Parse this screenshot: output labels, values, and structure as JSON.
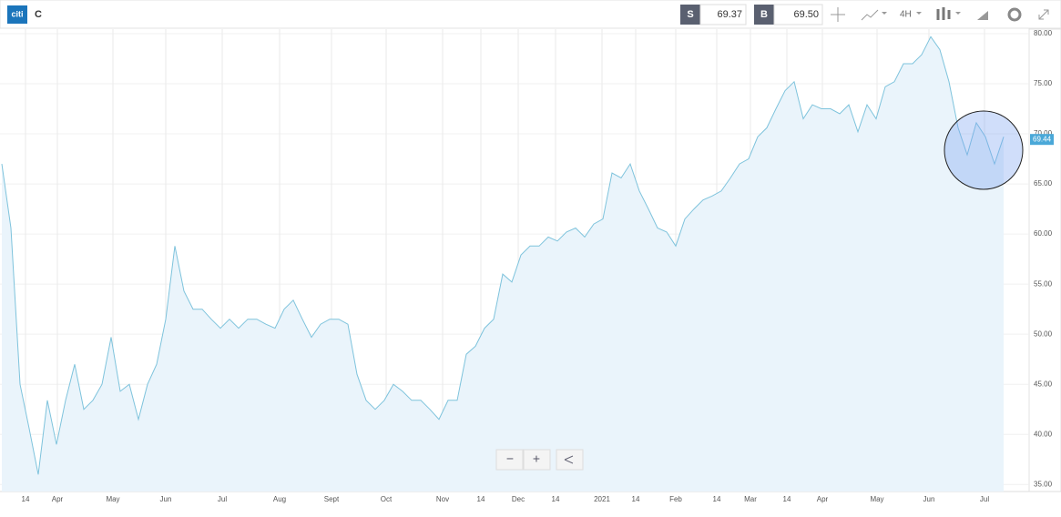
{
  "header": {
    "logo": "citi",
    "symbol": "C",
    "sell_label": "S",
    "sell": "69.37",
    "buy_label": "B",
    "buy": "69.50",
    "timeframe": "4H"
  },
  "zoom": {
    "minus": "−",
    "plus": "+"
  },
  "chart_data": {
    "type": "line",
    "color": "#7ec3dc",
    "fill": "#eaf4fb",
    "grid": true,
    "last_price": 69.44,
    "series": [
      {
        "name": "C",
        "color": "#7ec3dc",
        "values": [
          67,
          60.6,
          45,
          40.6,
          36,
          43.4,
          39,
          43.4,
          47,
          42.5,
          43.4,
          45,
          49.7,
          44.3,
          45,
          41.5,
          45,
          47,
          51.5,
          58.8,
          54.3,
          52.5,
          52.5,
          51.5,
          50.6,
          51.5,
          50.6,
          51.5,
          51.5,
          51,
          50.6,
          52.5,
          53.4,
          51.5,
          49.7,
          51,
          51.5,
          51.5,
          51,
          46,
          43.4,
          42.5,
          43.4,
          45,
          44.3,
          43.4,
          43.4,
          42.5,
          41.5,
          43.4,
          43.4,
          48,
          48.8,
          50.6,
          51.5,
          56,
          55.2,
          57.9,
          58.8,
          58.8,
          59.7,
          59.3,
          60.2,
          60.6,
          59.7,
          61,
          61.5,
          66.1,
          65.6,
          67,
          64.3,
          62.5,
          60.6,
          60.2,
          58.8,
          61.5,
          62.5,
          63.4,
          63.8,
          64.3,
          65.6,
          67,
          67.5,
          69.7,
          70.6,
          72.5,
          74.3,
          75.2,
          71.5,
          72.9,
          72.5,
          72.5,
          72,
          72.9,
          70.2,
          72.9,
          71.5,
          74.7,
          75.2,
          77,
          77,
          77.9,
          79.7,
          78.4,
          75.2,
          70.6,
          67.9,
          71.1,
          69.7,
          67,
          69.7
        ]
      }
    ],
    "xlim": [
      -0.2,
      112.8
    ],
    "xticks": [
      {
        "value": 2.6,
        "label": "14"
      },
      {
        "value": 6.1,
        "label": "Apr"
      },
      {
        "value": 12.2,
        "label": "May"
      },
      {
        "value": 18,
        "label": "Jun"
      },
      {
        "value": 24.2,
        "label": "Jul"
      },
      {
        "value": 30.5,
        "label": "Aug"
      },
      {
        "value": 36.2,
        "label": "Sept"
      },
      {
        "value": 42.2,
        "label": "Oct"
      },
      {
        "value": 48.4,
        "label": "Nov"
      },
      {
        "value": 52.6,
        "label": "14"
      },
      {
        "value": 56.7,
        "label": "Dec"
      },
      {
        "value": 60.8,
        "label": "14"
      },
      {
        "value": 65.9,
        "label": "2021"
      },
      {
        "value": 69.6,
        "label": "14"
      },
      {
        "value": 74,
        "label": "Feb"
      },
      {
        "value": 78.5,
        "label": "14"
      },
      {
        "value": 82.2,
        "label": "Mar"
      },
      {
        "value": 86.2,
        "label": "14"
      },
      {
        "value": 90.1,
        "label": "Apr"
      },
      {
        "value": 96.1,
        "label": "May"
      },
      {
        "value": 101.8,
        "label": "Jun"
      },
      {
        "value": 107.9,
        "label": "Jul"
      }
    ],
    "ylim": [
      34.3,
      80.45
    ],
    "yticks": [
      {
        "value": 35,
        "label": "35.00"
      },
      {
        "value": 40,
        "label": "40.00"
      },
      {
        "value": 45,
        "label": "45.00"
      },
      {
        "value": 50,
        "label": "50.00"
      },
      {
        "value": 55,
        "label": "55.00"
      },
      {
        "value": 60,
        "label": "60.00"
      },
      {
        "value": 65,
        "label": "65.00"
      },
      {
        "value": 70,
        "label": "70.00"
      },
      {
        "value": 75,
        "label": "75.00"
      },
      {
        "value": 80,
        "label": "80.00"
      }
    ]
  }
}
